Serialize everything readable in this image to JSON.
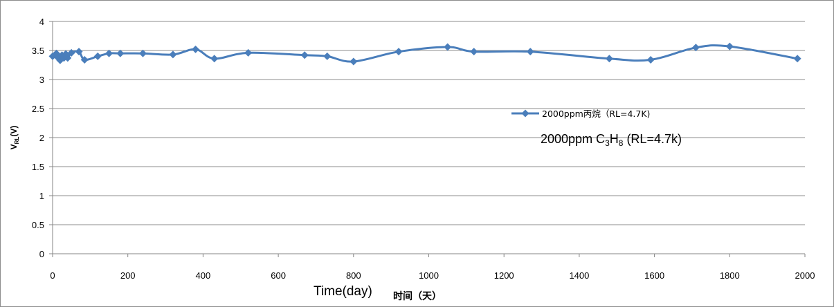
{
  "chart_data": {
    "type": "line",
    "xlim": [
      0,
      2000
    ],
    "ylim": [
      0,
      4
    ],
    "x_ticks": [
      "0",
      "200",
      "400",
      "600",
      "800",
      "1000",
      "1200",
      "1400",
      "1600",
      "1800",
      "2000"
    ],
    "y_ticks": [
      "0",
      "0.5",
      "1",
      "1.5",
      "2",
      "2.5",
      "3",
      "3.5",
      "4"
    ],
    "grid": "horizontal",
    "ylabel_main": "V",
    "ylabel_sub": "RL",
    "ylabel_suffix": "(V)",
    "xlabel_en": "Time(day)",
    "xlabel_cn": "时间（天）",
    "legend_position": "right",
    "series": [
      {
        "name": "2000ppm丙烷（RL=4.7K)",
        "color": "#4a7ebb",
        "points": [
          [
            0,
            3.4
          ],
          [
            10,
            3.45
          ],
          [
            15,
            3.37
          ],
          [
            20,
            3.33
          ],
          [
            25,
            3.42
          ],
          [
            30,
            3.37
          ],
          [
            35,
            3.44
          ],
          [
            40,
            3.37
          ],
          [
            50,
            3.46
          ],
          [
            70,
            3.48
          ],
          [
            85,
            3.34
          ],
          [
            120,
            3.4
          ],
          [
            150,
            3.45
          ],
          [
            180,
            3.45
          ],
          [
            240,
            3.45
          ],
          [
            320,
            3.43
          ],
          [
            380,
            3.52
          ],
          [
            430,
            3.36
          ],
          [
            520,
            3.46
          ],
          [
            670,
            3.42
          ],
          [
            730,
            3.4
          ],
          [
            800,
            3.31
          ],
          [
            920,
            3.48
          ],
          [
            1050,
            3.56
          ],
          [
            1120,
            3.48
          ],
          [
            1270,
            3.48
          ],
          [
            1480,
            3.36
          ],
          [
            1590,
            3.34
          ],
          [
            1710,
            3.55
          ],
          [
            1800,
            3.57
          ],
          [
            1980,
            3.36
          ]
        ]
      }
    ],
    "annotation": {
      "prefix": "2000ppm C",
      "sub1": "3",
      "mid": "H",
      "sub2": "8",
      "suffix": " (RL=4.7k)"
    }
  }
}
